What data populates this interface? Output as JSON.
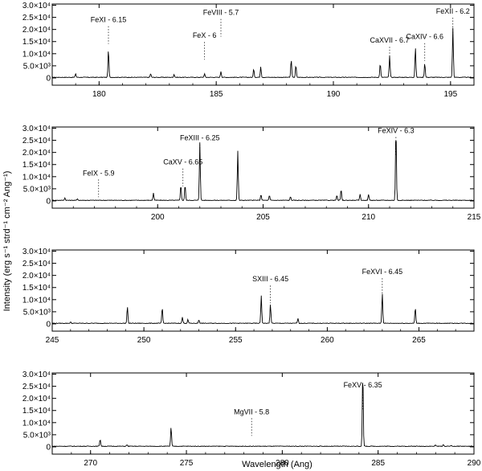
{
  "figure": {
    "ylabel": "Intensity (erg s⁻¹ strd⁻¹ cm⁻² Ang⁻¹)",
    "xlabel": "Wavelength (Ang)",
    "line_color": "#000000",
    "background": "#ffffff"
  },
  "chart_data": [
    {
      "type": "line",
      "xlim": [
        178,
        196
      ],
      "ylim": [
        -3000,
        30500
      ],
      "xticks": [
        180,
        185,
        190,
        195
      ],
      "yticks": [
        0,
        5000,
        10000,
        15000,
        20000,
        25000,
        30000
      ],
      "ytick_labels": [
        "0",
        "5.0×10³",
        "1.0×10⁴",
        "1.5×10⁴",
        "2.0×10⁴",
        "2.5×10⁴",
        "3.0×10⁴"
      ],
      "peaks": [
        [
          179.0,
          1500
        ],
        [
          180.4,
          11500
        ],
        [
          182.2,
          1500
        ],
        [
          183.2,
          1200
        ],
        [
          184.5,
          1500
        ],
        [
          185.2,
          2500
        ],
        [
          186.6,
          3500
        ],
        [
          186.9,
          4500
        ],
        [
          188.2,
          7500
        ],
        [
          188.4,
          5000
        ],
        [
          192.0,
          5800
        ],
        [
          192.4,
          9000
        ],
        [
          193.5,
          12500
        ],
        [
          193.9,
          6000
        ],
        [
          195.1,
          20500
        ]
      ],
      "annotations": [
        {
          "text": "FeXI - 6.15",
          "x": 180.4,
          "y": 23000
        },
        {
          "text": "FeVIII - 5.7",
          "x": 185.2,
          "y": 26000
        },
        {
          "text": "FeX - 6",
          "x": 184.5,
          "y": 16500
        },
        {
          "text": "CaXVII - 6.7",
          "x": 192.4,
          "y": 14500
        },
        {
          "text": "CaXIV - 6.6",
          "x": 193.9,
          "y": 16000
        },
        {
          "text": "FeXII - 6.2",
          "x": 195.1,
          "y": 26500
        }
      ]
    },
    {
      "type": "line",
      "xlim": [
        195,
        215
      ],
      "ylim": [
        -3000,
        30500
      ],
      "xticks": [
        200,
        205,
        210,
        215
      ],
      "yticks": [
        0,
        5000,
        10000,
        15000,
        20000,
        25000,
        30000
      ],
      "ytick_labels": [
        "0",
        "5.0×10³",
        "1.0×10⁴",
        "1.5×10⁴",
        "2.0×10⁴",
        "2.5×10⁴",
        "3.0×10⁴"
      ],
      "peaks": [
        [
          195.6,
          1000
        ],
        [
          196.2,
          600
        ],
        [
          199.8,
          3000
        ],
        [
          201.1,
          6500
        ],
        [
          201.3,
          6500
        ],
        [
          202.0,
          24000
        ],
        [
          203.8,
          20500
        ],
        [
          204.9,
          2500
        ],
        [
          205.3,
          2000
        ],
        [
          206.3,
          1500
        ],
        [
          208.5,
          2000
        ],
        [
          208.7,
          4500
        ],
        [
          209.6,
          2500
        ],
        [
          210.0,
          2500
        ],
        [
          211.3,
          30000
        ]
      ],
      "annotations": [
        {
          "text": "FeIX - 5.9",
          "x": 197.2,
          "y": 10500
        },
        {
          "text": "CaXV - 6.65",
          "x": 201.2,
          "y": 15000
        },
        {
          "text": "FeXIII - 6.25",
          "x": 202.0,
          "y": 25000
        },
        {
          "text": "FeXIV - 6.3",
          "x": 211.3,
          "y": 28000
        }
      ]
    },
    {
      "type": "line",
      "xlim": [
        245,
        268
      ],
      "ylim": [
        -3000,
        30500
      ],
      "xticks": [
        245,
        250,
        255,
        260,
        265
      ],
      "yticks": [
        0,
        5000,
        10000,
        15000,
        20000,
        25000,
        30000
      ],
      "ytick_labels": [
        "0",
        "5.0×10³",
        "1.0×10⁴",
        "1.5×10⁴",
        "2.0×10⁴",
        "2.5×10⁴",
        "3.0×10⁴"
      ],
      "peaks": [
        [
          246.0,
          500
        ],
        [
          249.1,
          7000
        ],
        [
          251.0,
          6500
        ],
        [
          252.1,
          2500
        ],
        [
          252.4,
          1500
        ],
        [
          253.0,
          1500
        ],
        [
          256.4,
          11500
        ],
        [
          256.9,
          8000
        ],
        [
          258.4,
          2000
        ],
        [
          263.0,
          12500
        ],
        [
          264.8,
          6500
        ]
      ],
      "annotations": [
        {
          "text": "SXIII - 6.45",
          "x": 256.9,
          "y": 17500
        },
        {
          "text": "FeXVI - 6.45",
          "x": 263.0,
          "y": 20500
        }
      ]
    },
    {
      "type": "line",
      "xlim": [
        268,
        290
      ],
      "ylim": [
        -3000,
        30500
      ],
      "xticks": [
        270,
        275,
        280,
        285,
        290
      ],
      "yticks": [
        0,
        5000,
        10000,
        15000,
        20000,
        25000,
        30000
      ],
      "ytick_labels": [
        "0",
        "5.0×10³",
        "1.0×10⁴",
        "1.5×10⁴",
        "2.0×10⁴",
        "2.5×10⁴",
        "3.0×10⁴"
      ],
      "peaks": [
        [
          270.5,
          3000
        ],
        [
          271.9,
          600
        ],
        [
          274.2,
          8000
        ],
        [
          284.2,
          31000
        ],
        [
          288.0,
          500
        ],
        [
          288.4,
          700
        ],
        [
          288.8,
          400
        ]
      ],
      "annotations": [
        {
          "text": "MgVII - 5.8",
          "x": 278.4,
          "y": 13500
        },
        {
          "text": "FeXV - 6.35",
          "x": 284.2,
          "y": 24500
        }
      ]
    }
  ]
}
